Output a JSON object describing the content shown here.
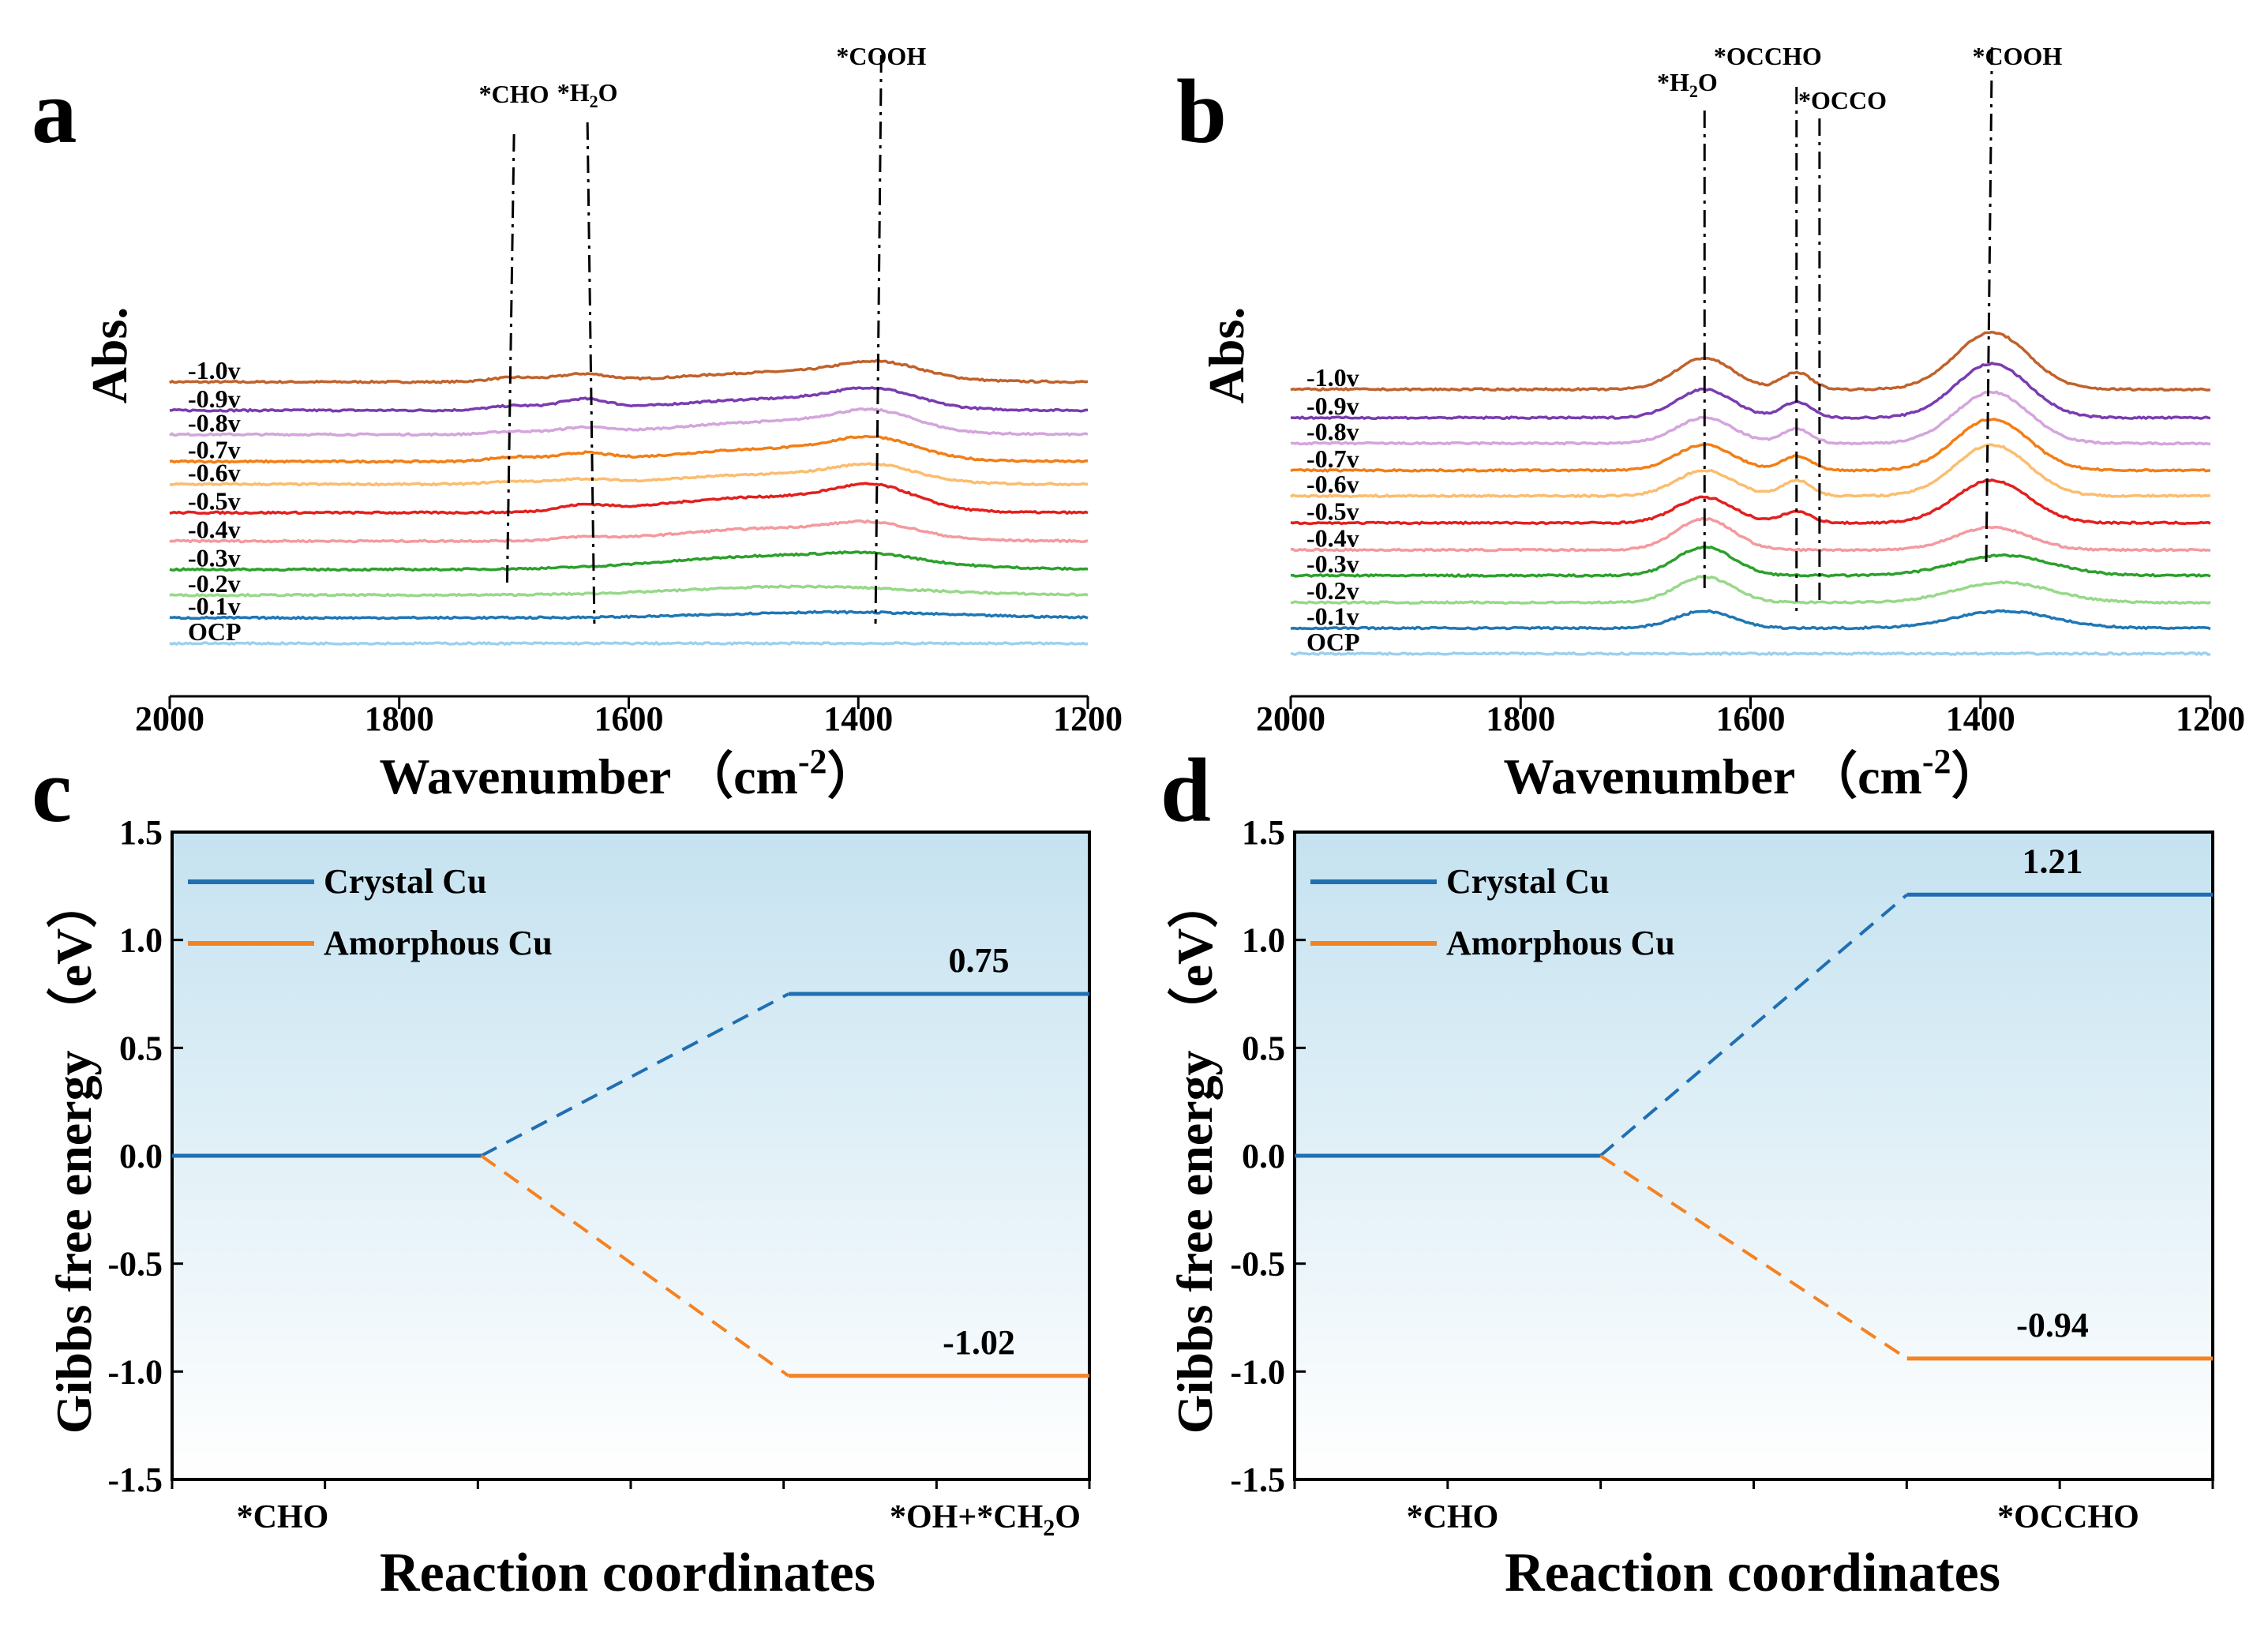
{
  "colors": {
    "-1.0v": "#c0622c",
    "-0.9v": "#7a3cb0",
    "-0.8v": "#d4a5dc",
    "-0.7v": "#f37e15",
    "-0.6v": "#fbbd6e",
    "-0.5v": "#e3201e",
    "-0.4v": "#f39a9e",
    "-0.3v": "#2ca02c",
    "-0.2v": "#98d88a",
    "-0.1v": "#1f77b4",
    "OCP": "#9dd0ee",
    "crystal": "#1f6fb2",
    "amorphous": "#f58220",
    "bg_top": "#c8e3f0",
    "bg_bottom": "#ffffff"
  },
  "chart_data": [
    {
      "panel": "a",
      "type": "line",
      "xlabel": "Wavenumber",
      "xlabel_unit": "（cm",
      "xlabel_exp": "-2",
      "xlabel_close": "）",
      "ylabel": "Abs.",
      "xlim": [
        2000,
        1200
      ],
      "xticks": [
        "2000",
        "1800",
        "1600",
        "1400",
        "1200"
      ],
      "series": [
        {
          "name": "-1.0v",
          "offset": 9.2,
          "peaks": [
            [
              1700,
              0.15,
              30
            ],
            [
              1640,
              0.25,
              30
            ],
            [
              1460,
              0.35,
              120
            ],
            [
              1380,
              0.5,
              50
            ]
          ]
        },
        {
          "name": "-0.9v",
          "offset": 8.2,
          "peaks": [
            [
              1700,
              0.15,
              30
            ],
            [
              1640,
              0.35,
              30
            ],
            [
              1470,
              0.4,
              120
            ],
            [
              1385,
              0.55,
              50
            ]
          ]
        },
        {
          "name": "-0.8v",
          "offset": 7.35,
          "peaks": [
            [
              1700,
              0.1,
              30
            ],
            [
              1640,
              0.2,
              30
            ],
            [
              1470,
              0.45,
              120
            ],
            [
              1385,
              0.6,
              50
            ]
          ]
        },
        {
          "name": "-0.7v",
          "offset": 6.4,
          "peaks": [
            [
              1700,
              0.15,
              30
            ],
            [
              1640,
              0.25,
              30
            ],
            [
              1470,
              0.45,
              120
            ],
            [
              1385,
              0.6,
              50
            ]
          ]
        },
        {
          "name": "-0.6v",
          "offset": 5.6,
          "peaks": [
            [
              1700,
              0.1,
              30
            ],
            [
              1640,
              0.15,
              30
            ],
            [
              1470,
              0.35,
              120
            ],
            [
              1385,
              0.5,
              50
            ]
          ]
        },
        {
          "name": "-0.5v",
          "offset": 4.6,
          "peaks": [
            [
              1640,
              0.2,
              30
            ],
            [
              1480,
              0.55,
              120
            ],
            [
              1385,
              0.7,
              50
            ]
          ]
        },
        {
          "name": "-0.4v",
          "offset": 3.6,
          "peaks": [
            [
              1640,
              0.1,
              30
            ],
            [
              1470,
              0.45,
              120
            ],
            [
              1385,
              0.4,
              50
            ]
          ]
        },
        {
          "name": "-0.3v",
          "offset": 2.6,
          "peaks": [
            [
              1460,
              0.5,
              140
            ],
            [
              1385,
              0.2,
              50
            ]
          ]
        },
        {
          "name": "-0.2v",
          "offset": 1.7,
          "peaks": [
            [
              1450,
              0.3,
              140
            ]
          ]
        },
        {
          "name": "-0.1v",
          "offset": 0.9,
          "peaks": [
            [
              1420,
              0.2,
              140
            ]
          ]
        },
        {
          "name": "OCP",
          "offset": 0.0,
          "peaks": []
        }
      ],
      "peak_labels": [
        {
          "text": "*CHO",
          "x": 1700
        },
        {
          "text": "*H",
          "sub": "2",
          "tail": "O",
          "x": 1636
        },
        {
          "text": "*COOH",
          "x": 1380
        }
      ]
    },
    {
      "panel": "b",
      "type": "line",
      "xlabel": "Wavenumber",
      "xlabel_unit": "（cm",
      "xlabel_exp": "-2",
      "xlabel_close": "）",
      "ylabel": "Abs.",
      "xlim": [
        2000,
        1200
      ],
      "xticks": [
        "2000",
        "1800",
        "1600",
        "1400",
        "1200"
      ],
      "series": [
        {
          "name": "-1.0v",
          "offset": 9.3,
          "peaks": [
            [
              1640,
              1.1,
              35
            ],
            [
              1560,
              0.6,
              18
            ],
            [
              1390,
              2.0,
              45
            ]
          ]
        },
        {
          "name": "-0.9v",
          "offset": 8.3,
          "peaks": [
            [
              1640,
              1.0,
              35
            ],
            [
              1560,
              0.55,
              18
            ],
            [
              1390,
              1.9,
              45
            ]
          ]
        },
        {
          "name": "-0.8v",
          "offset": 7.4,
          "peaks": [
            [
              1640,
              0.9,
              35
            ],
            [
              1560,
              0.5,
              18
            ],
            [
              1390,
              1.8,
              45
            ]
          ]
        },
        {
          "name": "-0.7v",
          "offset": 6.45,
          "peaks": [
            [
              1640,
              0.9,
              35
            ],
            [
              1560,
              0.5,
              18
            ],
            [
              1390,
              1.8,
              45
            ]
          ]
        },
        {
          "name": "-0.6v",
          "offset": 5.55,
          "peaks": [
            [
              1640,
              0.9,
              35
            ],
            [
              1560,
              0.55,
              18
            ],
            [
              1390,
              1.8,
              45
            ]
          ]
        },
        {
          "name": "-0.5v",
          "offset": 4.6,
          "peaks": [
            [
              1640,
              0.9,
              35
            ],
            [
              1560,
              0.4,
              18
            ],
            [
              1390,
              1.5,
              45
            ]
          ]
        },
        {
          "name": "-0.4v",
          "offset": 3.65,
          "peaks": [
            [
              1640,
              1.1,
              35
            ],
            [
              1390,
              0.8,
              45
            ]
          ]
        },
        {
          "name": "-0.3v",
          "offset": 2.75,
          "peaks": [
            [
              1640,
              1.0,
              35
            ],
            [
              1380,
              0.7,
              60
            ]
          ]
        },
        {
          "name": "-0.2v",
          "offset": 1.8,
          "peaks": [
            [
              1640,
              0.9,
              35
            ],
            [
              1380,
              0.7,
              60
            ]
          ]
        },
        {
          "name": "-0.1v",
          "offset": 0.9,
          "peaks": [
            [
              1640,
              0.6,
              35
            ],
            [
              1380,
              0.6,
              60
            ]
          ]
        },
        {
          "name": "OCP",
          "offset": 0.0,
          "peaks": []
        }
      ],
      "peak_labels": [
        {
          "text": "*H",
          "sub": "2",
          "tail": "O",
          "x": 1640
        },
        {
          "text": "*OCCHO",
          "x": 1585
        },
        {
          "text": "*OCCO",
          "x": 1515
        },
        {
          "text": "*COOH",
          "x": 1370
        }
      ]
    },
    {
      "panel": "c",
      "type": "line",
      "xlabel": "Reaction coordinates",
      "ylabel": "Gibbs free energy （eV）",
      "ylim": [
        -1.5,
        1.5
      ],
      "yticks": [
        "1.5",
        "1.0",
        "0.5",
        "0.0",
        "-0.5",
        "-1.0",
        "-1.5"
      ],
      "categories": [
        "*CHO",
        "*OH+*CH2O"
      ],
      "category_sub": [
        {
          "text": "*OH+*CH",
          "sub": "2",
          "tail": "O"
        }
      ],
      "series": [
        {
          "name": "Crystal Cu",
          "values": [
            0.0,
            0.75
          ]
        },
        {
          "name": "Amorphous Cu",
          "values": [
            0.0,
            -1.02
          ]
        }
      ],
      "value_labels": [
        "0.75",
        "-1.02"
      ]
    },
    {
      "panel": "d",
      "type": "line",
      "xlabel": "Reaction coordinates",
      "ylabel": "Gibbs free energy （eV）",
      "ylim": [
        -1.5,
        1.5
      ],
      "yticks": [
        "1.5",
        "1.0",
        "0.5",
        "0.0",
        "-0.5",
        "-1.0",
        "-1.5"
      ],
      "categories": [
        "*CHO",
        "*OCCHO"
      ],
      "series": [
        {
          "name": "Crystal Cu",
          "values": [
            0.0,
            1.21
          ]
        },
        {
          "name": "Amorphous Cu",
          "values": [
            0.0,
            -0.94
          ]
        }
      ],
      "value_labels": [
        "1.21",
        "-0.94"
      ]
    }
  ],
  "panel_letters": [
    "a",
    "b",
    "c",
    "d"
  ]
}
